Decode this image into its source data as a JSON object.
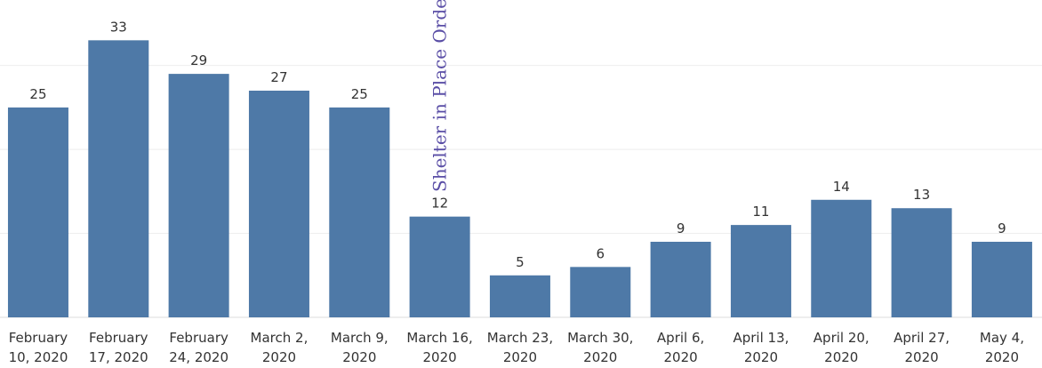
{
  "chart_data": {
    "type": "bar",
    "categories": [
      [
        "February",
        "10, 2020"
      ],
      [
        "February",
        "17, 2020"
      ],
      [
        "February",
        "24, 2020"
      ],
      [
        "March 2,",
        "2020"
      ],
      [
        "March 9,",
        "2020"
      ],
      [
        "March 16,",
        "2020"
      ],
      [
        "March 23,",
        "2020"
      ],
      [
        "March 30,",
        "2020"
      ],
      [
        "April 6,",
        "2020"
      ],
      [
        "April 13,",
        "2020"
      ],
      [
        "April 20,",
        "2020"
      ],
      [
        "April 27,",
        "2020"
      ],
      [
        "May 4,",
        "2020"
      ]
    ],
    "values": [
      25,
      33,
      29,
      27,
      25,
      12,
      5,
      6,
      9,
      11,
      14,
      13,
      9
    ],
    "color": "#4e79a7",
    "ylim": [
      0,
      37.8
    ],
    "yticks": [
      0,
      10,
      20,
      30
    ],
    "grid": true,
    "annotations": [
      {
        "text": "Shelter in Place Order",
        "category_index": 5,
        "color": "#5a4ea6"
      }
    ]
  }
}
